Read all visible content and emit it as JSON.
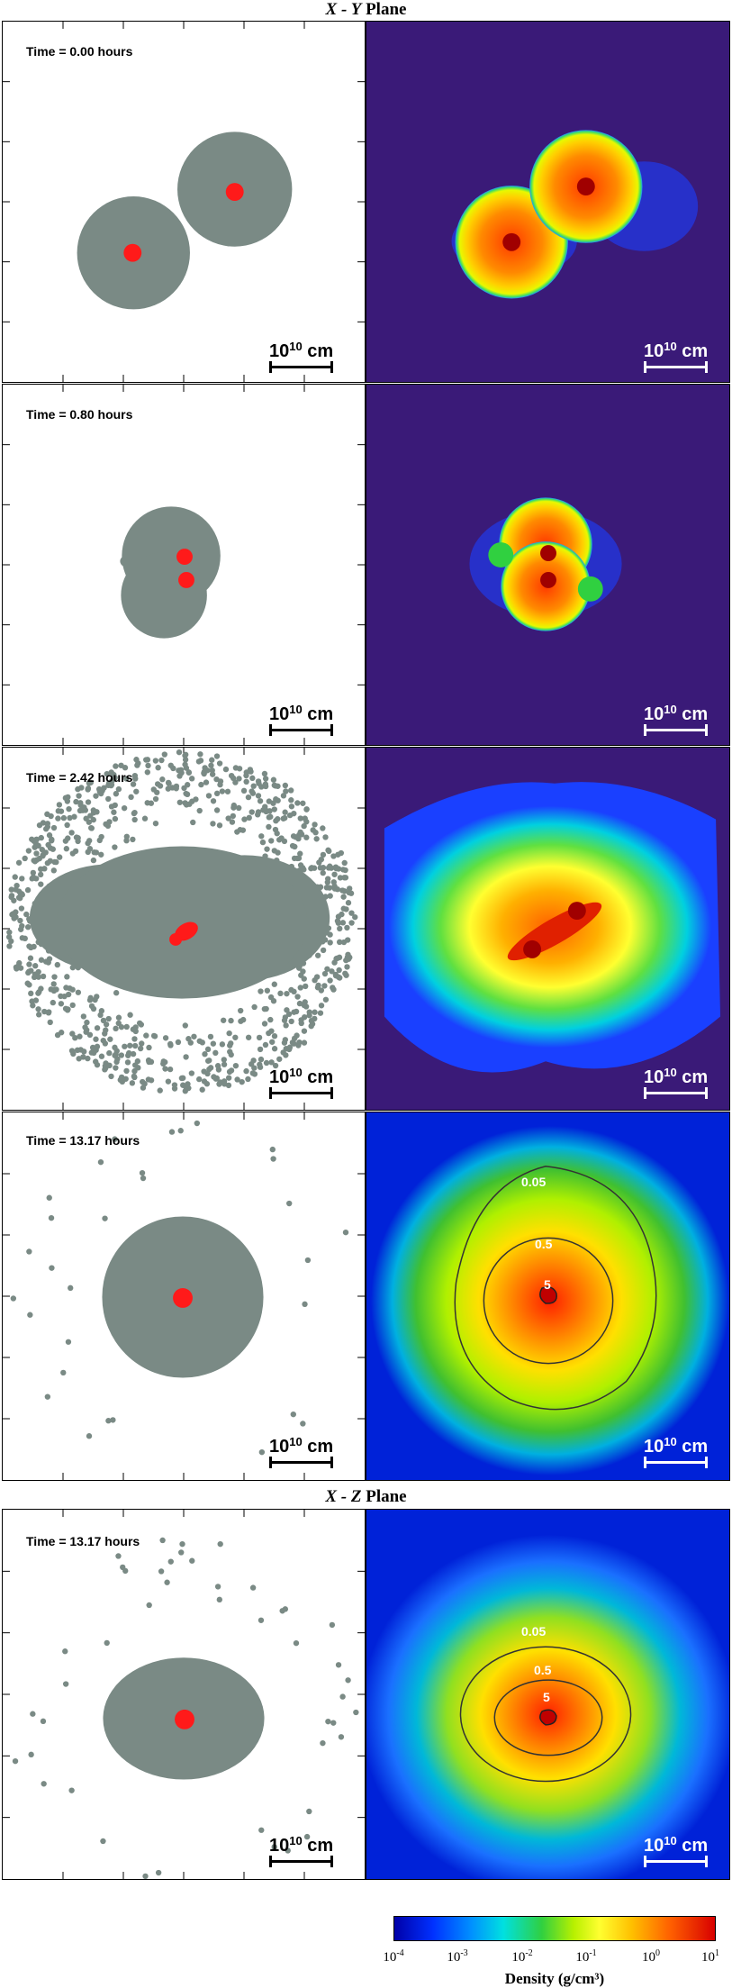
{
  "figure": {
    "xy_plane_title_var": "X - Y",
    "xy_plane_title_word": "Plane",
    "xz_plane_title_var": "X - Z",
    "xz_plane_title_word": "Plane",
    "rows": [
      {
        "time_label": "Time =  0.00 hours"
      },
      {
        "time_label": "Time =  0.80 hours"
      },
      {
        "time_label": "Time =  2.42 hours"
      },
      {
        "time_label": "Time = 13.17 hours"
      },
      {
        "time_label": "Time = 13.17 hours"
      }
    ],
    "scale_bar": {
      "base": "10",
      "exponent": "10",
      "unit": "cm"
    },
    "contours": {
      "outer": "0.05",
      "middle": "0.5",
      "inner": "5"
    },
    "colorbar": {
      "title": "Density (g/cm³)",
      "ticks": [
        {
          "base": "10",
          "exp": "-4"
        },
        {
          "base": "10",
          "exp": "-3"
        },
        {
          "base": "10",
          "exp": "-2"
        },
        {
          "base": "10",
          "exp": "-1"
        },
        {
          "base": "10",
          "exp": "0"
        },
        {
          "base": "10",
          "exp": "1"
        }
      ]
    },
    "colors": {
      "particle_gray": "#7a8a85",
      "particle_red": "#ff1a1a",
      "bg_purple": "#3a1a78",
      "bg_blue": "#0022d8"
    }
  }
}
